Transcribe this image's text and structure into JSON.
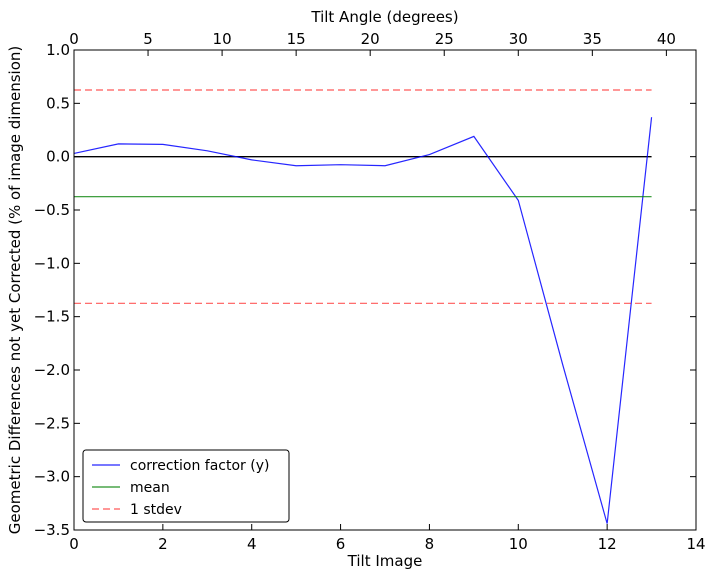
{
  "chart_data": {
    "type": "line",
    "xlabel": "Tilt Image",
    "ylabel": "Geometric Differences not yet Corrected (% of image dimension)",
    "top_xlabel": "Tilt Angle (degrees)",
    "xlim": [
      0,
      14
    ],
    "ylim": [
      -3.5,
      1.0
    ],
    "top_xlim": [
      0,
      42
    ],
    "x_ticks": [
      0,
      2,
      4,
      6,
      8,
      10,
      12,
      14
    ],
    "y_ticks": [
      -3.5,
      -3.0,
      -2.5,
      -2.0,
      -1.5,
      -1.0,
      -0.5,
      0.0,
      0.5,
      1.0
    ],
    "top_x_ticks": [
      0,
      5,
      10,
      15,
      20,
      25,
      30,
      35,
      40
    ],
    "x_tick_labels": [
      "0",
      "2",
      "4",
      "6",
      "8",
      "10",
      "12",
      "14"
    ],
    "y_tick_labels": [
      "−3.5",
      "−3.0",
      "−2.5",
      "−2.0",
      "−1.5",
      "−1.0",
      "−0.5",
      "0.0",
      "0.5",
      "1.0"
    ],
    "top_x_tick_labels": [
      "0",
      "5",
      "10",
      "15",
      "20",
      "25",
      "30",
      "35",
      "40"
    ],
    "grid": false,
    "legend_position": "lower-left",
    "series": [
      {
        "name": "correction factor (y)",
        "color": "#0000ff",
        "style": "solid",
        "x": [
          0,
          1,
          2,
          3,
          4,
          5,
          6,
          7,
          8,
          9,
          10,
          11,
          12,
          13
        ],
        "values": [
          0.03,
          0.12,
          0.115,
          0.055,
          -0.03,
          -0.085,
          -0.075,
          -0.085,
          0.02,
          0.19,
          -0.41,
          -1.95,
          -3.44,
          0.37
        ]
      },
      {
        "name": "mean",
        "color": "#008000",
        "style": "solid",
        "x": [
          0,
          13
        ],
        "values": [
          -0.375,
          -0.375
        ]
      },
      {
        "name": "1 stdev",
        "color": "#ff0000",
        "style": "dashed",
        "x": [
          0,
          13
        ],
        "values": [
          0.625,
          0.625
        ]
      },
      {
        "name": "",
        "color": "#ff0000",
        "style": "dashed",
        "x": [
          0,
          13
        ],
        "values": [
          -1.375,
          -1.375
        ]
      }
    ],
    "reference_line": {
      "y": 0.0,
      "x": [
        0,
        13
      ],
      "color": "#000000"
    }
  }
}
